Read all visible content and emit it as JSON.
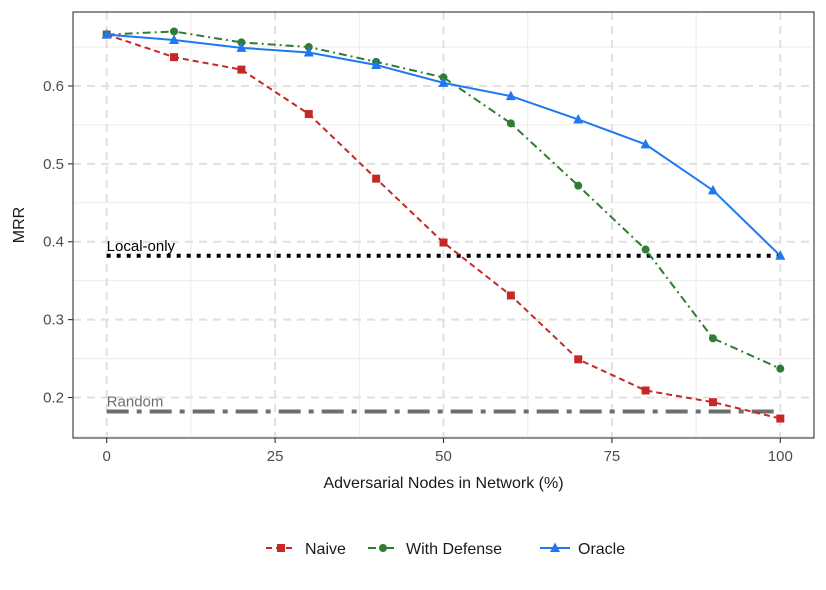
{
  "chart_data": {
    "type": "line",
    "title": "",
    "xlabel": "Adversarial Nodes in Network (%)",
    "ylabel": "MRR",
    "xlim": [
      -5,
      105
    ],
    "ylim": [
      0.148,
      0.695
    ],
    "x_ticks": [
      0,
      25,
      50,
      75,
      100
    ],
    "y_ticks": [
      0.2,
      0.3,
      0.4,
      0.5,
      0.6
    ],
    "x_tick_labels": [
      "0",
      "25",
      "50",
      "75",
      "100"
    ],
    "y_tick_labels": [
      "0.2",
      "0.3",
      "0.4",
      "0.5",
      "0.6"
    ],
    "grid": true,
    "legend_position": "bottom",
    "series": [
      {
        "name": "Naive",
        "color": "#c62828",
        "marker": "square",
        "linestyle": "dashed",
        "x": [
          0,
          10,
          20,
          30,
          40,
          50,
          60,
          70,
          80,
          90,
          100
        ],
        "y": [
          0.666,
          0.637,
          0.621,
          0.564,
          0.481,
          0.399,
          0.331,
          0.249,
          0.209,
          0.194,
          0.173
        ]
      },
      {
        "name": "With Defense",
        "color": "#2e7d32",
        "marker": "circle",
        "linestyle": "dashdot",
        "x": [
          0,
          10,
          20,
          30,
          40,
          50,
          60,
          70,
          80,
          90,
          100
        ],
        "y": [
          0.666,
          0.67,
          0.656,
          0.65,
          0.631,
          0.611,
          0.552,
          0.472,
          0.39,
          0.276,
          0.237
        ]
      },
      {
        "name": "Oracle",
        "color": "#1e78f0",
        "marker": "triangle",
        "linestyle": "solid",
        "x": [
          0,
          10,
          20,
          30,
          40,
          50,
          60,
          70,
          80,
          90,
          100
        ],
        "y": [
          0.666,
          0.659,
          0.649,
          0.643,
          0.627,
          0.604,
          0.587,
          0.557,
          0.525,
          0.466,
          0.382
        ]
      }
    ],
    "reference_lines": [
      {
        "label": "Local-only",
        "y": 0.382,
        "color": "#000000",
        "style": "dotted"
      },
      {
        "label": "Random",
        "y": 0.182,
        "color": "#6e6e6e",
        "style": "dashdot"
      }
    ]
  }
}
